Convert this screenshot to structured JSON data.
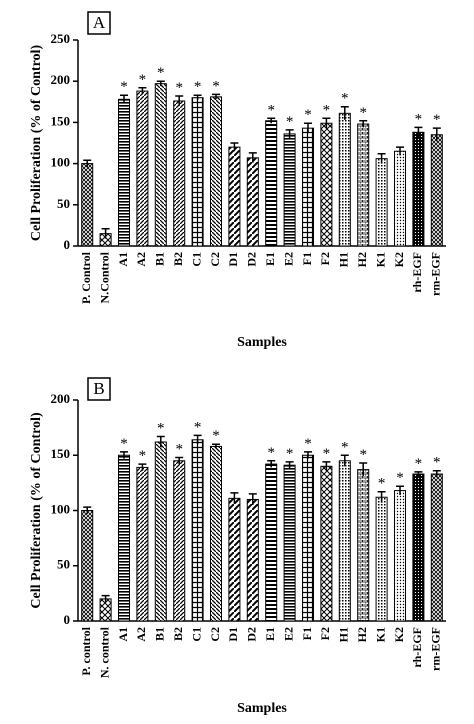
{
  "chart_data": [
    {
      "type": "bar",
      "panel_label": "A",
      "y_label": "Cell Proliferation (% of Control)",
      "x_label": "Samples",
      "categories": [
        "P. Control",
        "N.Control",
        "A1",
        "A2",
        "B1",
        "B2",
        "C1",
        "C2",
        "D1",
        "D2",
        "E1",
        "E2",
        "F1",
        "F2",
        "H1",
        "H2",
        "K1",
        "K2",
        "rh-EGF",
        "rm-EGF"
      ],
      "values": [
        100,
        15,
        178,
        188,
        197,
        176,
        180,
        181,
        120,
        107,
        152,
        136,
        143,
        149,
        161,
        148,
        106,
        115,
        138,
        135
      ],
      "errors": [
        4,
        6,
        5,
        4,
        3,
        6,
        3,
        3,
        5,
        6,
        3,
        5,
        6,
        6,
        8,
        4,
        6,
        5,
        6,
        8
      ],
      "markers": [
        null,
        null,
        "*",
        "*",
        "*",
        "*",
        "*",
        "*",
        null,
        null,
        "*",
        "*",
        "*",
        "*",
        "*",
        "*",
        null,
        null,
        "*",
        "*"
      ],
      "ylim": [
        0,
        250
      ],
      "yticks": [
        0,
        50,
        100,
        150,
        200,
        250
      ],
      "color": "#000000"
    },
    {
      "type": "bar",
      "panel_label": "B",
      "y_label": "Cell Proliferation (% of Control)",
      "x_label": "Samples",
      "categories": [
        "P. control",
        "N. control",
        "A1",
        "A2",
        "B1",
        "B2",
        "C1",
        "C2",
        "D1",
        "D2",
        "E1",
        "E2",
        "F1",
        "F2",
        "H1",
        "H2",
        "K1",
        "K2",
        "rh-EGF",
        "rm-EGF"
      ],
      "values": [
        100,
        20,
        150,
        139,
        162,
        145,
        164,
        158,
        111,
        110,
        142,
        141,
        150,
        140,
        145,
        137,
        112,
        118,
        133,
        133
      ],
      "errors": [
        3,
        3,
        3,
        3,
        5,
        3,
        4,
        2,
        5,
        5,
        3,
        3,
        3,
        4,
        5,
        6,
        5,
        4,
        2,
        3
      ],
      "markers": [
        null,
        null,
        "*",
        "*",
        "*",
        "*",
        "*",
        "*",
        null,
        null,
        "*",
        "*",
        "*",
        "*",
        "*",
        "*",
        "*",
        "*",
        "*",
        "*"
      ],
      "ylim": [
        0,
        200
      ],
      "yticks": [
        0,
        50,
        100,
        150,
        200
      ],
      "color": "#000000"
    }
  ]
}
